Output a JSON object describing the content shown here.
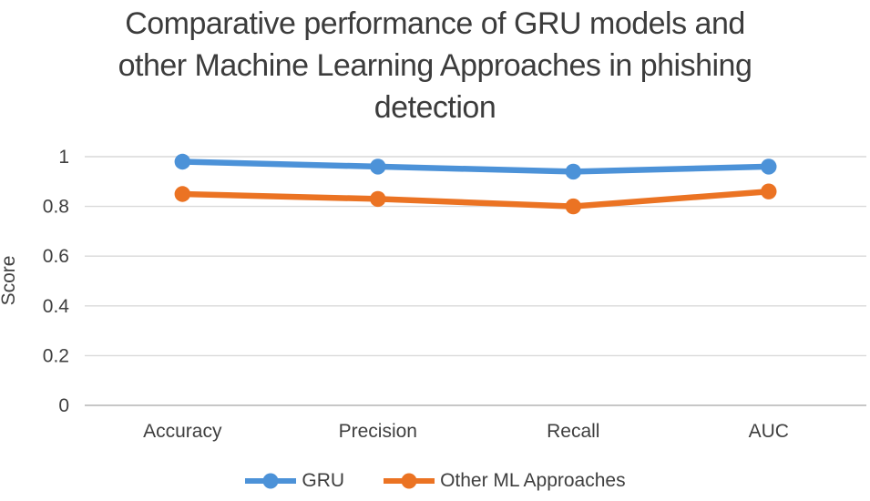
{
  "chart_data": {
    "type": "line",
    "title": "Comparative performance of GRU models and other Machine Learning Approaches in phishing detection",
    "title_lines": [
      "Comparative performance of GRU models and",
      "other Machine Learning Approaches in phishing",
      "detection"
    ],
    "categories": [
      "Accuracy",
      "Precision",
      "Recall",
      "AUC"
    ],
    "series": [
      {
        "name": "GRU",
        "color": "#4C92D8",
        "values": [
          0.98,
          0.96,
          0.94,
          0.96
        ]
      },
      {
        "name": "Other ML Approaches",
        "color": "#EB7323",
        "values": [
          0.85,
          0.83,
          0.8,
          0.86
        ]
      }
    ],
    "xlabel": "",
    "ylabel": "Score",
    "ylim": [
      0,
      1
    ],
    "yticks": [
      0,
      0.2,
      0.4,
      0.6,
      0.8,
      1
    ],
    "ytick_labels": [
      "0",
      "0.2",
      "0.4",
      "0.6",
      "0.8",
      "1"
    ],
    "grid": true,
    "legend_position": "bottom",
    "colors": {
      "background": "#ffffff",
      "gridline": "#d9d9d9",
      "axis_line": "#bfbfbf",
      "tick_text": "#3f3f3f",
      "title_text": "#3c3c3c"
    }
  }
}
